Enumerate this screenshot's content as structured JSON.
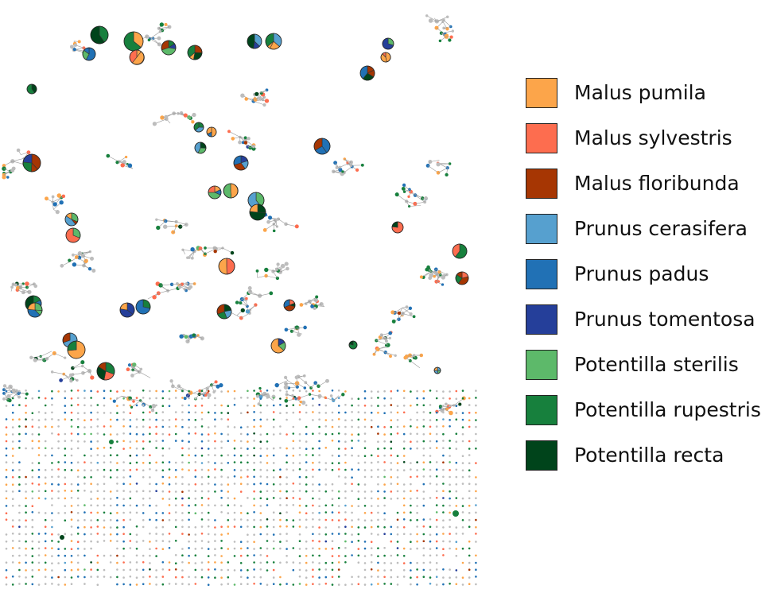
{
  "legend": {
    "items": [
      {
        "label": "Malus pumila",
        "color": "#fca54a"
      },
      {
        "label": "Malus sylvestris",
        "color": "#fd6d4f"
      },
      {
        "label": "Malus floribunda",
        "color": "#a63603"
      },
      {
        "label": "Prunus cerasifera",
        "color": "#56a0cf"
      },
      {
        "label": "Prunus padus",
        "color": "#2171b5"
      },
      {
        "label": "Prunus tomentosa",
        "color": "#253f9a"
      },
      {
        "label": "Potentilla sterilis",
        "color": "#5db96a"
      },
      {
        "label": "Potentilla rupestris",
        "color": "#17803d"
      },
      {
        "label": "Potentilla recta",
        "color": "#00441b"
      }
    ]
  },
  "network": {
    "neutral_node_color": "#bdbdbd",
    "edge_color": "#9a9a9a"
  }
}
